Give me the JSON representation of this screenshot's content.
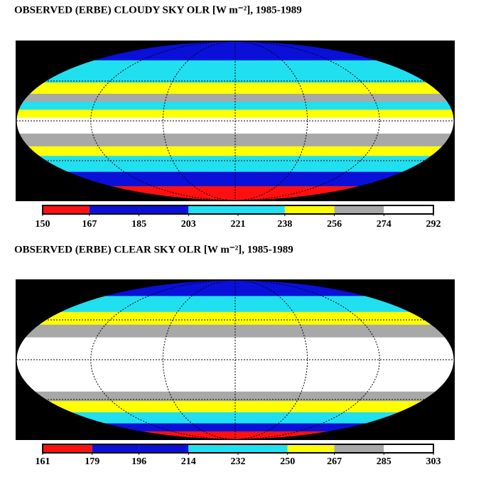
{
  "panels": [
    {
      "title": "OBSERVED (ERBE) CLOUDY SKY OLR [W m⁻²], 1985-1989",
      "colorbar": {
        "ticks": [
          150,
          167,
          185,
          203,
          221,
          238,
          256,
          274,
          292
        ],
        "colors": [
          "#ff1010",
          "#0a10d8",
          "#0a10d8",
          "#20e0f0",
          "#20e0f0",
          "#ffff00",
          "#a8a8a8",
          "#ffffff"
        ]
      }
    },
    {
      "title": "OBSERVED (ERBE) CLEAR SKY OLR [W m⁻²], 1985-1989",
      "colorbar": {
        "ticks": [
          161,
          179,
          196,
          214,
          232,
          250,
          267,
          285,
          303
        ],
        "colors": [
          "#ff1010",
          "#0a10d8",
          "#0a10d8",
          "#20e0f0",
          "#20e0f0",
          "#ffff00",
          "#a8a8a8",
          "#ffffff"
        ]
      }
    }
  ]
}
